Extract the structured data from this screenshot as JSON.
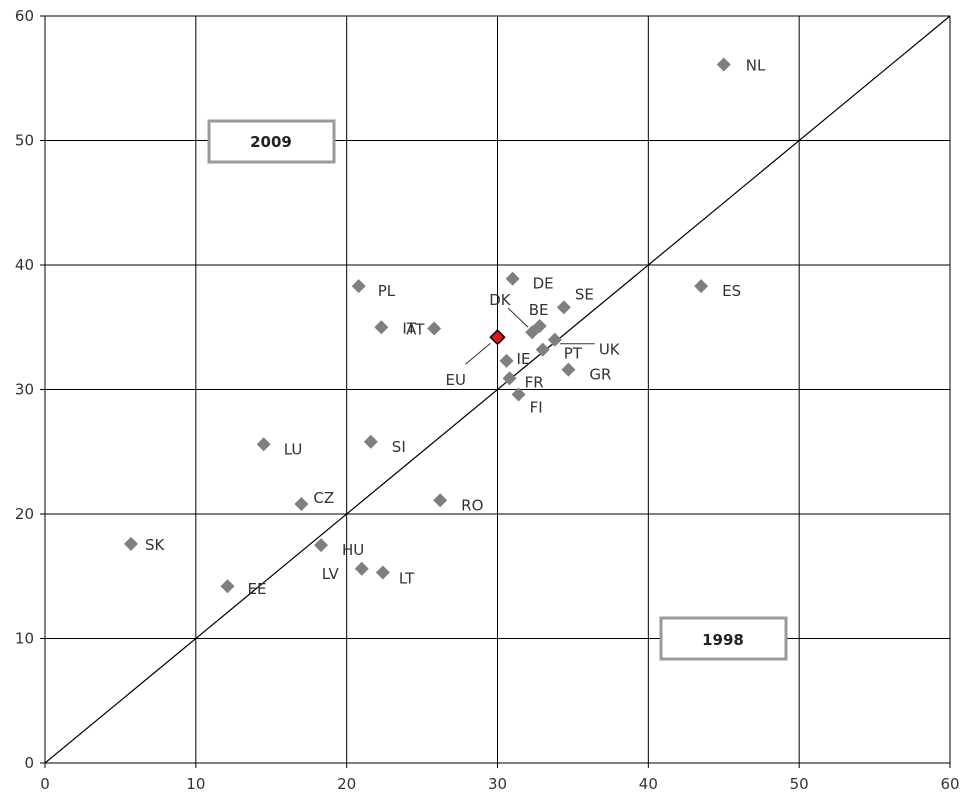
{
  "chart_data": {
    "type": "scatter",
    "title": "",
    "xlabel": "",
    "ylabel": "",
    "xlim": [
      0,
      60
    ],
    "ylim": [
      0,
      60
    ],
    "x_ticks": [
      "0",
      "10",
      "20",
      "30",
      "40",
      "50",
      "60"
    ],
    "y_ticks": [
      "0",
      "10",
      "20",
      "30",
      "40",
      "50",
      "60"
    ],
    "grid": true,
    "reference_line": "diagonal y = x",
    "annotations": {
      "y_axis_year": "2009",
      "x_axis_year": "1998"
    },
    "colors": {
      "marker": "#7f7f7f",
      "highlight": "#e8141b",
      "grid": "#000000",
      "box_border": "#999999"
    },
    "points": [
      {
        "label": "NL",
        "x": 45.0,
        "y": 56.1
      },
      {
        "label": "DE",
        "x": 31.0,
        "y": 38.9
      },
      {
        "label": "PL",
        "x": 20.8,
        "y": 38.3
      },
      {
        "label": "ES",
        "x": 43.5,
        "y": 38.3
      },
      {
        "label": "SE",
        "x": 34.4,
        "y": 36.6
      },
      {
        "label": "BE",
        "x": 32.8,
        "y": 35.1
      },
      {
        "label": "DK",
        "x": 32.3,
        "y": 34.6
      },
      {
        "label": "IT",
        "x": 22.3,
        "y": 35.0
      },
      {
        "label": "AT",
        "x": 25.8,
        "y": 34.9
      },
      {
        "label": "EU",
        "x": 30.0,
        "y": 34.2,
        "highlight": true
      },
      {
        "label": "UK",
        "x": 33.8,
        "y": 34.0
      },
      {
        "label": "PT",
        "x": 33.0,
        "y": 33.2
      },
      {
        "label": "IE",
        "x": 30.6,
        "y": 32.3
      },
      {
        "label": "GR",
        "x": 34.7,
        "y": 31.6
      },
      {
        "label": "FR",
        "x": 30.8,
        "y": 30.9
      },
      {
        "label": "FI",
        "x": 31.4,
        "y": 29.6
      },
      {
        "label": "LU",
        "x": 14.5,
        "y": 25.6
      },
      {
        "label": "SI",
        "x": 21.6,
        "y": 25.8
      },
      {
        "label": "RO",
        "x": 26.2,
        "y": 21.1
      },
      {
        "label": "CZ",
        "x": 17.0,
        "y": 20.8
      },
      {
        "label": "SK",
        "x": 5.7,
        "y": 17.6
      },
      {
        "label": "HU",
        "x": 18.3,
        "y": 17.5
      },
      {
        "label": "LV",
        "x": 21.0,
        "y": 15.6
      },
      {
        "label": "LT",
        "x": 22.4,
        "y": 15.3
      },
      {
        "label": "EE",
        "x": 12.1,
        "y": 14.2
      }
    ]
  }
}
